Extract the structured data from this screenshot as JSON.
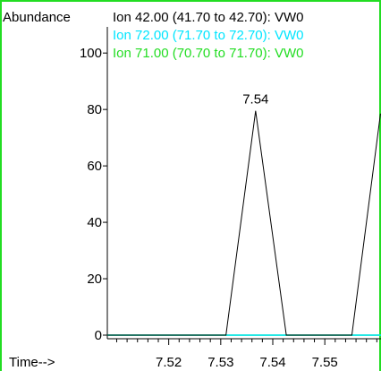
{
  "chart_data": {
    "type": "line",
    "title": "",
    "ylabel": "Abundance",
    "xlabel": "Time-->",
    "xlim": [
      7.5082,
      7.5608
    ],
    "ylim": [
      0,
      108
    ],
    "x_ticks": [
      7.52,
      7.53,
      7.54,
      7.55
    ],
    "x_tick_labels": [
      "7.52",
      "7.53",
      "7.54",
      "7.55"
    ],
    "x_minor_step": 0.002,
    "y_ticks": [
      0,
      20,
      40,
      60,
      80,
      100
    ],
    "y_tick_labels": [
      "0",
      "20",
      "40",
      "60",
      "80",
      "100"
    ],
    "legend_placement": "top",
    "series": [
      {
        "name": "Ion  42.00 (41.70 to 42.70): VW0",
        "color": "#000000",
        "x": [
          7.5082,
          7.531,
          7.5367,
          7.5426,
          7.5552,
          7.5607
        ],
        "y": [
          0,
          0,
          79.5,
          0,
          0,
          78.5
        ]
      },
      {
        "name": "Ion  72.00 (71.70 to 72.70): VW0",
        "color": "#00e5ff",
        "x": [
          7.5082,
          7.5608
        ],
        "y": [
          0,
          0
        ]
      },
      {
        "name": "Ion  71.00 (70.70 to 71.70): VW0",
        "color": "#22dd22",
        "x": [
          7.5082,
          7.5608
        ],
        "y": [
          0,
          0
        ]
      }
    ],
    "annotations": [
      {
        "text": "7.54",
        "x": 7.5367,
        "y": 79.5
      }
    ]
  }
}
